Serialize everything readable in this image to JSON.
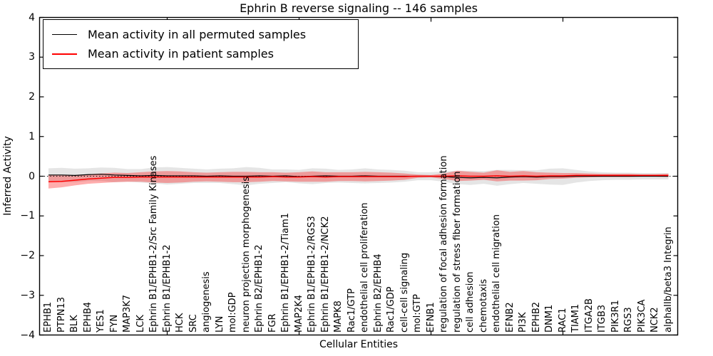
{
  "chart_data": {
    "type": "line",
    "title": "Ephrin B reverse signaling -- 146 samples",
    "xlabel": "Cellular Entities",
    "ylabel": "Inferred Activity",
    "ylim": [
      -4,
      4
    ],
    "yticks": [
      4,
      3,
      2,
      1,
      0,
      -1,
      -2,
      -3,
      -4
    ],
    "ytick_labels": [
      "4",
      "3",
      "2",
      "1",
      "0",
      "−1",
      "−2",
      "−3",
      "−4"
    ],
    "xticks_major_at": [
      10,
      20,
      30,
      40
    ],
    "grid": false,
    "zero_line_style": "dotted",
    "legend": {
      "position": "upper-left",
      "entries": [
        {
          "label": "Mean activity in all permuted samples",
          "color": "#000000"
        },
        {
          "label": "Mean activity in patient samples",
          "color": "#ff0000"
        }
      ]
    },
    "categories": [
      "EPHB1",
      "PTPN13",
      "BLK",
      "EPHB4",
      "YES1",
      "FYN",
      "MAP3K7",
      "LCK",
      "Ephrin B1/EPHB1-2/Src Family Kinases",
      "Ephrin B1/EPHB1-2",
      "HCK",
      "SRC",
      "angiogenesis",
      "LYN",
      "mol:GDP",
      "neuron projection morphogenesis",
      "Ephrin B2/EPHB1-2",
      "FGR",
      "Ephrin B1/EPHB1-2/Tiam1",
      "MAP2K4",
      "Ephrin B1/EPHB1-2/RGS3",
      "Ephrin B1/EPHB1-2/NCK2",
      "MAPK8",
      "Rac1/GTP",
      "endothelial cell proliferation",
      "Ephrin B2/EPHB4",
      "Rac1/GDP",
      "cell-cell signaling",
      "mol:GTP",
      "EFNB1",
      "regulation of focal adhesion formation",
      "regulation of stress fiber formation",
      "cell adhesion",
      "chemotaxis",
      "endothelial cell migration",
      "EFNB2",
      "PI3K",
      "EPHB2",
      "DNM1",
      "RAC1",
      "TIAM1",
      "ITGA2B",
      "ITGB3",
      "PIK3R1",
      "RGS3",
      "PIK3CA",
      "NCK2",
      "alphaIIb/beta3 Integrin"
    ],
    "series": [
      {
        "name": "Mean activity in all permuted samples",
        "color": "#000000",
        "line_width": 1.2,
        "band_opacity": 0.1,
        "values": [
          0.03,
          0.03,
          0.02,
          0.04,
          0.05,
          0.03,
          0.02,
          0.01,
          0.02,
          0.01,
          0.01,
          0.01,
          0.0,
          0.01,
          0.0,
          0.0,
          0.01,
          0.0,
          0.01,
          -0.01,
          0.0,
          0.01,
          0.0,
          0.0,
          0.01,
          0.0,
          0.0,
          0.0,
          0.0,
          0.0,
          -0.01,
          -0.03,
          -0.04,
          -0.03,
          -0.04,
          -0.02,
          -0.01,
          -0.02,
          -0.01,
          -0.01,
          0.0,
          0.0,
          0.0,
          0.0,
          0.0,
          0.0,
          0.0,
          0.0
        ],
        "std": [
          0.17,
          0.18,
          0.17,
          0.16,
          0.17,
          0.18,
          0.16,
          0.17,
          0.2,
          0.22,
          0.2,
          0.18,
          0.17,
          0.18,
          0.2,
          0.23,
          0.2,
          0.17,
          0.16,
          0.17,
          0.2,
          0.18,
          0.16,
          0.17,
          0.19,
          0.17,
          0.16,
          0.14,
          0.1,
          0.1,
          0.13,
          0.17,
          0.18,
          0.16,
          0.2,
          0.18,
          0.16,
          0.17,
          0.2,
          0.21,
          0.16,
          0.12,
          0.1,
          0.09,
          0.09,
          0.08,
          0.08,
          0.08
        ]
      },
      {
        "name": "Mean activity in patient samples",
        "color": "#ff0000",
        "line_width": 1.5,
        "band_opacity": 0.32,
        "values": [
          -0.14,
          -0.13,
          -0.1,
          -0.07,
          -0.05,
          -0.03,
          -0.03,
          -0.02,
          -0.02,
          -0.02,
          -0.02,
          -0.02,
          -0.02,
          -0.02,
          -0.02,
          -0.02,
          -0.02,
          -0.01,
          -0.02,
          -0.02,
          -0.01,
          -0.02,
          -0.01,
          -0.01,
          -0.01,
          -0.01,
          -0.01,
          -0.01,
          0.0,
          0.0,
          0.0,
          0.01,
          0.0,
          0.0,
          0.01,
          0.0,
          0.01,
          0.0,
          0.01,
          0.01,
          0.02,
          0.02,
          0.02,
          0.02,
          0.02,
          0.02,
          0.02,
          0.02
        ],
        "std": [
          0.17,
          0.15,
          0.13,
          0.12,
          0.12,
          0.12,
          0.11,
          0.12,
          0.14,
          0.15,
          0.14,
          0.12,
          0.11,
          0.12,
          0.13,
          0.13,
          0.12,
          0.11,
          0.11,
          0.12,
          0.13,
          0.12,
          0.11,
          0.11,
          0.12,
          0.11,
          0.1,
          0.08,
          0.04,
          0.03,
          0.07,
          0.13,
          0.11,
          0.09,
          0.14,
          0.11,
          0.12,
          0.1,
          0.08,
          0.07,
          0.06,
          0.05,
          0.04,
          0.04,
          0.04,
          0.03,
          0.03,
          0.04
        ]
      }
    ]
  },
  "colors": {
    "frame": "#000000",
    "background": "#ffffff",
    "permuted_line": "#000000",
    "patient_line": "#ff0000"
  }
}
